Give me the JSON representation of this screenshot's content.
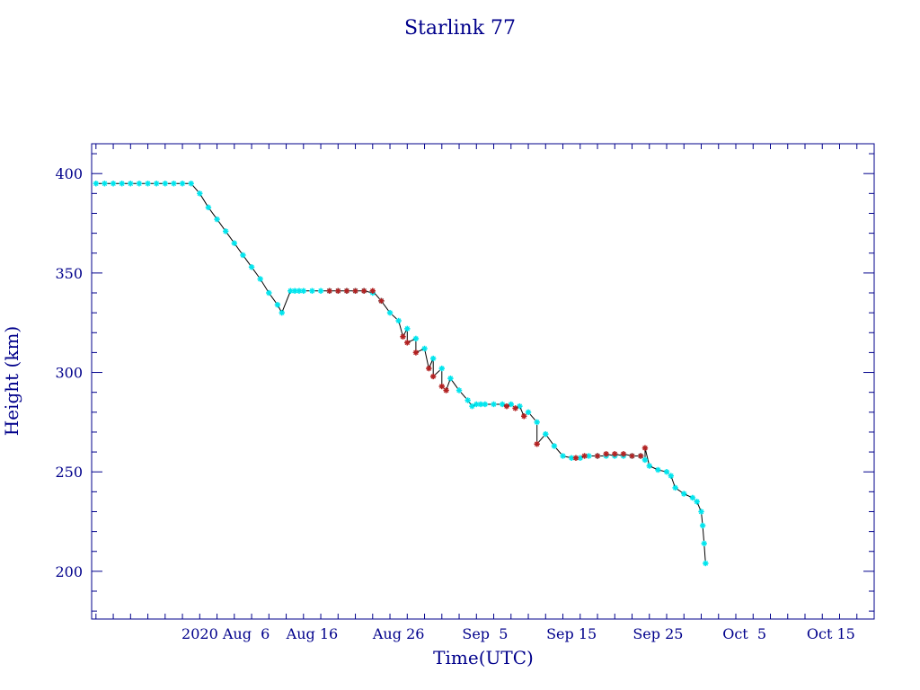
{
  "colors": {
    "text": "#00008b",
    "axes": "#00008b",
    "line": "#000000",
    "marker_primary": "#00e5ee",
    "marker_secondary": "#b22222",
    "background": "#ffffff"
  },
  "chart_data": {
    "type": "scatter",
    "title": "Starlink 77",
    "xlabel": "Time(UTC)",
    "ylabel": "Height (km)",
    "x_type": "date",
    "xlim": [
      "2020-07-21T12:00",
      "2020-10-20T00:00"
    ],
    "ylim": [
      176,
      415
    ],
    "grid": false,
    "legend": "none",
    "x_ticks": [
      {
        "label": "2020 Aug  6",
        "date": "2020-08-06"
      },
      {
        "label": "Aug 16",
        "date": "2020-08-16"
      },
      {
        "label": "Aug 26",
        "date": "2020-08-26"
      },
      {
        "label": "Sep  5",
        "date": "2020-09-05"
      },
      {
        "label": "Sep 15",
        "date": "2020-09-15"
      },
      {
        "label": "Sep 25",
        "date": "2020-09-25"
      },
      {
        "label": "Oct  5",
        "date": "2020-10-05"
      },
      {
        "label": "Oct 15",
        "date": "2020-10-15"
      }
    ],
    "y_ticks": [
      200,
      250,
      300,
      350,
      400
    ],
    "y_minor_step": 10,
    "x_minor_step_days": 2,
    "series": [
      {
        "marker": "cyan",
        "points": [
          [
            "2020-07-22T00:00",
            395
          ],
          [
            "2020-07-23T00:00",
            395
          ],
          [
            "2020-07-24T00:00",
            395
          ],
          [
            "2020-07-25T00:00",
            395
          ],
          [
            "2020-07-26T00:00",
            395
          ],
          [
            "2020-07-27T00:00",
            395
          ],
          [
            "2020-07-28T00:00",
            395
          ],
          [
            "2020-07-29T00:00",
            395
          ],
          [
            "2020-07-30T00:00",
            395
          ],
          [
            "2020-07-31T00:00",
            395
          ],
          [
            "2020-08-01T00:00",
            395
          ],
          [
            "2020-08-02T00:00",
            395
          ],
          [
            "2020-08-03T00:00",
            390
          ],
          [
            "2020-08-04T00:00",
            383
          ],
          [
            "2020-08-05T00:00",
            377
          ],
          [
            "2020-08-06T00:00",
            371
          ],
          [
            "2020-08-07T00:00",
            365
          ],
          [
            "2020-08-08T00:00",
            359
          ],
          [
            "2020-08-09T00:00",
            353
          ],
          [
            "2020-08-10T00:00",
            347
          ],
          [
            "2020-08-11T00:00",
            340
          ],
          [
            "2020-08-12T00:00",
            334
          ],
          [
            "2020-08-12T12:00",
            330
          ],
          [
            "2020-08-13T12:00",
            341
          ],
          [
            "2020-08-14T00:00",
            341
          ],
          [
            "2020-08-14T12:00",
            341
          ],
          [
            "2020-08-15T00:00",
            341
          ],
          [
            "2020-08-16T00:00",
            341
          ],
          [
            "2020-08-17T00:00",
            341
          ],
          [
            "2020-08-18T00:00",
            341
          ],
          [
            "2020-08-19T00:00",
            341
          ],
          [
            "2020-08-20T00:00",
            341
          ],
          [
            "2020-08-21T00:00",
            341
          ],
          [
            "2020-08-22T00:00",
            341
          ],
          [
            "2020-08-23T00:00",
            340
          ],
          [
            "2020-08-24T00:00",
            336
          ],
          [
            "2020-08-25T00:00",
            330
          ],
          [
            "2020-08-26T00:00",
            326
          ],
          [
            "2020-08-27T00:00",
            322
          ],
          [
            "2020-08-28T00:00",
            317
          ],
          [
            "2020-08-29T00:00",
            312
          ],
          [
            "2020-08-30T00:00",
            307
          ],
          [
            "2020-08-31T00:00",
            302
          ],
          [
            "2020-09-01T00:00",
            297
          ],
          [
            "2020-09-02T00:00",
            291
          ],
          [
            "2020-09-03T00:00",
            286
          ],
          [
            "2020-09-03T12:00",
            283
          ],
          [
            "2020-09-04T00:00",
            284
          ],
          [
            "2020-09-04T12:00",
            284
          ],
          [
            "2020-09-05T00:00",
            284
          ],
          [
            "2020-09-06T00:00",
            284
          ],
          [
            "2020-09-07T00:00",
            284
          ],
          [
            "2020-09-08T00:00",
            284
          ],
          [
            "2020-09-09T00:00",
            283
          ],
          [
            "2020-09-10T00:00",
            280
          ],
          [
            "2020-09-11T00:00",
            275
          ],
          [
            "2020-09-12T00:00",
            269
          ],
          [
            "2020-09-13T00:00",
            263
          ],
          [
            "2020-09-14T00:00",
            258
          ],
          [
            "2020-09-15T00:00",
            257
          ],
          [
            "2020-09-16T00:00",
            257
          ],
          [
            "2020-09-17T00:00",
            258
          ],
          [
            "2020-09-18T00:00",
            258
          ],
          [
            "2020-09-19T00:00",
            258
          ],
          [
            "2020-09-20T00:00",
            258
          ],
          [
            "2020-09-21T00:00",
            258
          ],
          [
            "2020-09-22T00:00",
            258
          ],
          [
            "2020-09-23T00:00",
            258
          ],
          [
            "2020-09-23T12:00",
            256
          ],
          [
            "2020-09-24T00:00",
            253
          ],
          [
            "2020-09-25T00:00",
            251
          ],
          [
            "2020-09-26T00:00",
            250
          ],
          [
            "2020-09-26T12:00",
            248
          ],
          [
            "2020-09-27T00:00",
            242
          ],
          [
            "2020-09-28T00:00",
            239
          ],
          [
            "2020-09-29T00:00",
            237
          ],
          [
            "2020-09-29T12:00",
            235
          ],
          [
            "2020-09-30T00:00",
            230
          ],
          [
            "2020-09-30T04:00",
            223
          ],
          [
            "2020-09-30T08:00",
            214
          ],
          [
            "2020-09-30T12:00",
            204
          ]
        ]
      },
      {
        "marker": "red",
        "points": [
          [
            "2020-08-18T00:00",
            341
          ],
          [
            "2020-08-19T00:00",
            341
          ],
          [
            "2020-08-20T00:00",
            341
          ],
          [
            "2020-08-21T00:00",
            341
          ],
          [
            "2020-08-22T00:00",
            341
          ],
          [
            "2020-08-23T00:00",
            341
          ],
          [
            "2020-08-24T00:00",
            336
          ],
          [
            "2020-08-26T12:00",
            318
          ],
          [
            "2020-08-27T00:00",
            315
          ],
          [
            "2020-08-28T00:00",
            310
          ],
          [
            "2020-08-29T12:00",
            302
          ],
          [
            "2020-08-30T00:00",
            298
          ],
          [
            "2020-08-31T00:00",
            293
          ],
          [
            "2020-08-31T12:00",
            291
          ],
          [
            "2020-09-07T12:00",
            283
          ],
          [
            "2020-09-08T12:00",
            282
          ],
          [
            "2020-09-09T12:00",
            278
          ],
          [
            "2020-09-11T00:00",
            264
          ],
          [
            "2020-09-15T12:00",
            257
          ],
          [
            "2020-09-16T12:00",
            258
          ],
          [
            "2020-09-18T00:00",
            258
          ],
          [
            "2020-09-19T00:00",
            259
          ],
          [
            "2020-09-20T00:00",
            259
          ],
          [
            "2020-09-21T00:00",
            259
          ],
          [
            "2020-09-22T00:00",
            258
          ],
          [
            "2020-09-23T00:00",
            258
          ],
          [
            "2020-09-23T12:00",
            262
          ]
        ]
      }
    ]
  }
}
